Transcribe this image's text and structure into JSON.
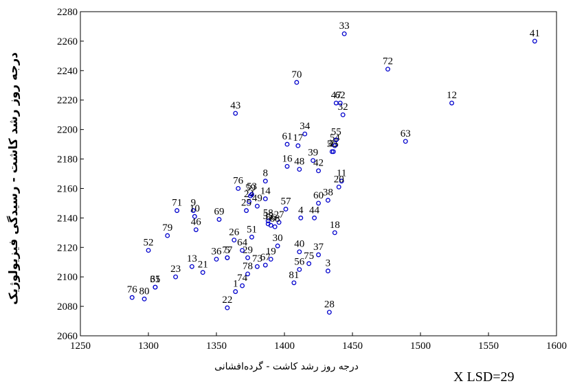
{
  "chart_data": {
    "type": "scatter",
    "xlabel": "درجه روز رشد کاشت - گرده‌افشانی",
    "ylabel": "درجه روز رشد کاشت - رسیدگی فیزیولوژیک",
    "annotation": "X LSD=29",
    "xlim": [
      1250,
      1600
    ],
    "ylim": [
      2060,
      2280
    ],
    "xticks": [
      1250,
      1300,
      1350,
      1400,
      1450,
      1500,
      1550,
      1600
    ],
    "yticks": [
      2060,
      2080,
      2100,
      2120,
      2140,
      2160,
      2180,
      2200,
      2220,
      2240,
      2260,
      2280
    ],
    "marker_color": "#0000cc",
    "grid": false,
    "points": [
      {
        "label": "1",
        "x": 1364,
        "y": 2090
      },
      {
        "label": "3",
        "x": 1432,
        "y": 2104
      },
      {
        "label": "4",
        "x": 1412,
        "y": 2140
      },
      {
        "label": "5",
        "x": 1358,
        "y": 2113
      },
      {
        "label": "8",
        "x": 1386,
        "y": 2165
      },
      {
        "label": "9",
        "x": 1333,
        "y": 2145
      },
      {
        "label": "10",
        "x": 1334,
        "y": 2141
      },
      {
        "label": "11",
        "x": 1442,
        "y": 2165
      },
      {
        "label": "12",
        "x": 1523,
        "y": 2218
      },
      {
        "label": "13",
        "x": 1332,
        "y": 2107
      },
      {
        "label": "14",
        "x": 1386,
        "y": 2153
      },
      {
        "label": "16",
        "x": 1402,
        "y": 2175
      },
      {
        "label": "17",
        "x": 1410,
        "y": 2189
      },
      {
        "label": "18",
        "x": 1437,
        "y": 2130
      },
      {
        "label": "19",
        "x": 1390,
        "y": 2112
      },
      {
        "label": "20",
        "x": 1440,
        "y": 2161
      },
      {
        "label": "21",
        "x": 1340,
        "y": 2103
      },
      {
        "label": "22",
        "x": 1358,
        "y": 2079
      },
      {
        "label": "23",
        "x": 1320,
        "y": 2100
      },
      {
        "label": "24",
        "x": 1374,
        "y": 2151
      },
      {
        "label": "25",
        "x": 1372,
        "y": 2145
      },
      {
        "label": "26",
        "x": 1363,
        "y": 2125
      },
      {
        "label": "27",
        "x": 1396,
        "y": 2137
      },
      {
        "label": "28",
        "x": 1433,
        "y": 2076
      },
      {
        "label": "29",
        "x": 1373,
        "y": 2113
      },
      {
        "label": "30",
        "x": 1395,
        "y": 2121
      },
      {
        "label": "31",
        "x": 1305,
        "y": 2093
      },
      {
        "label": "32",
        "x": 1443,
        "y": 2210
      },
      {
        "label": "33",
        "x": 1444,
        "y": 2265
      },
      {
        "label": "34",
        "x": 1415,
        "y": 2197
      },
      {
        "label": "35",
        "x": 1388,
        "y": 2136
      },
      {
        "label": "36",
        "x": 1350,
        "y": 2112
      },
      {
        "label": "37",
        "x": 1425,
        "y": 2115
      },
      {
        "label": "38",
        "x": 1432,
        "y": 2152
      },
      {
        "label": "39",
        "x": 1421,
        "y": 2179
      },
      {
        "label": "40",
        "x": 1411,
        "y": 2117
      },
      {
        "label": "41",
        "x": 1584,
        "y": 2260
      },
      {
        "label": "42",
        "x": 1425,
        "y": 2172
      },
      {
        "label": "43",
        "x": 1364,
        "y": 2211
      },
      {
        "label": "44",
        "x": 1422,
        "y": 2140
      },
      {
        "label": "45",
        "x": 1436,
        "y": 2185
      },
      {
        "label": "46",
        "x": 1335,
        "y": 2132
      },
      {
        "label": "47",
        "x": 1438,
        "y": 2218
      },
      {
        "label": "48",
        "x": 1411,
        "y": 2173
      },
      {
        "label": "49",
        "x": 1380,
        "y": 2148
      },
      {
        "label": "50",
        "x": 1435,
        "y": 2185
      },
      {
        "label": "51",
        "x": 1376,
        "y": 2127
      },
      {
        "label": "52",
        "x": 1300,
        "y": 2118
      },
      {
        "label": "53",
        "x": 1376,
        "y": 2156
      },
      {
        "label": "54",
        "x": 1437,
        "y": 2189
      },
      {
        "label": "55",
        "x": 1438,
        "y": 2193
      },
      {
        "label": "56",
        "x": 1411,
        "y": 2105
      },
      {
        "label": "57",
        "x": 1401,
        "y": 2146
      },
      {
        "label": "58",
        "x": 1388,
        "y": 2138
      },
      {
        "label": "59",
        "x": 1375,
        "y": 2155
      },
      {
        "label": "60",
        "x": 1425,
        "y": 2150
      },
      {
        "label": "61",
        "x": 1402,
        "y": 2190
      },
      {
        "label": "62",
        "x": 1441,
        "y": 2218
      },
      {
        "label": "63",
        "x": 1489,
        "y": 2192
      },
      {
        "label": "64",
        "x": 1369,
        "y": 2118
      },
      {
        "label": "65",
        "x": 1305,
        "y": 2093
      },
      {
        "label": "66",
        "x": 1390,
        "y": 2135
      },
      {
        "label": "67",
        "x": 1386,
        "y": 2108
      },
      {
        "label": "68",
        "x": 1393,
        "y": 2134
      },
      {
        "label": "69",
        "x": 1352,
        "y": 2139
      },
      {
        "label": "70",
        "x": 1409,
        "y": 2232
      },
      {
        "label": "71",
        "x": 1321,
        "y": 2145
      },
      {
        "label": "72",
        "x": 1476,
        "y": 2241
      },
      {
        "label": "73",
        "x": 1380,
        "y": 2107
      },
      {
        "label": "74",
        "x": 1369,
        "y": 2094
      },
      {
        "label": "75",
        "x": 1418,
        "y": 2109
      },
      {
        "label": "76",
        "x": 1366,
        "y": 2160
      },
      {
        "label": "76",
        "x": 1288,
        "y": 2086
      },
      {
        "label": "77",
        "x": 1358,
        "y": 2113
      },
      {
        "label": "78",
        "x": 1373,
        "y": 2102
      },
      {
        "label": "79",
        "x": 1314,
        "y": 2128
      },
      {
        "label": "80",
        "x": 1297,
        "y": 2085
      },
      {
        "label": "81",
        "x": 1407,
        "y": 2096
      }
    ]
  }
}
